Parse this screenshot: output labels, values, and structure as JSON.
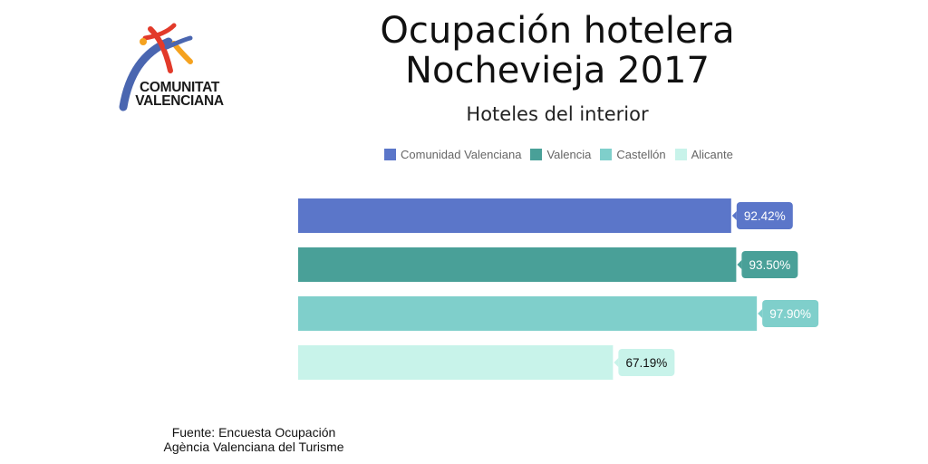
{
  "logo": {
    "line1": "COMUNITAT",
    "line2": "VALENCIANA"
  },
  "title": {
    "line1": "Ocupación hotelera",
    "line2": "Nochevieja 2017"
  },
  "subtitle": "Hoteles del interior",
  "source": {
    "line1": "Fuente: Encuesta Ocupación",
    "line2": "Agència Valenciana del Turisme"
  },
  "chart_data": {
    "type": "bar",
    "orientation": "horizontal",
    "legend_position": "top",
    "grid": false,
    "xlim": [
      0,
      100
    ],
    "series": [
      {
        "name": "Comunidad Valenciana",
        "value": 92.42,
        "label": "92.42%",
        "color": "#5b76c9",
        "label_text_color": "#ffffff"
      },
      {
        "name": "Valencia",
        "value": 93.5,
        "label": "93.50%",
        "color": "#49a098",
        "label_text_color": "#ffffff"
      },
      {
        "name": "Castellón",
        "value": 97.9,
        "label": "97.90%",
        "color": "#7fcfcb",
        "label_text_color": "#ffffff"
      },
      {
        "name": "Alicante",
        "value": 67.19,
        "label": "67.19%",
        "color": "#c8f3ea",
        "label_text_color": "#111111"
      }
    ]
  }
}
